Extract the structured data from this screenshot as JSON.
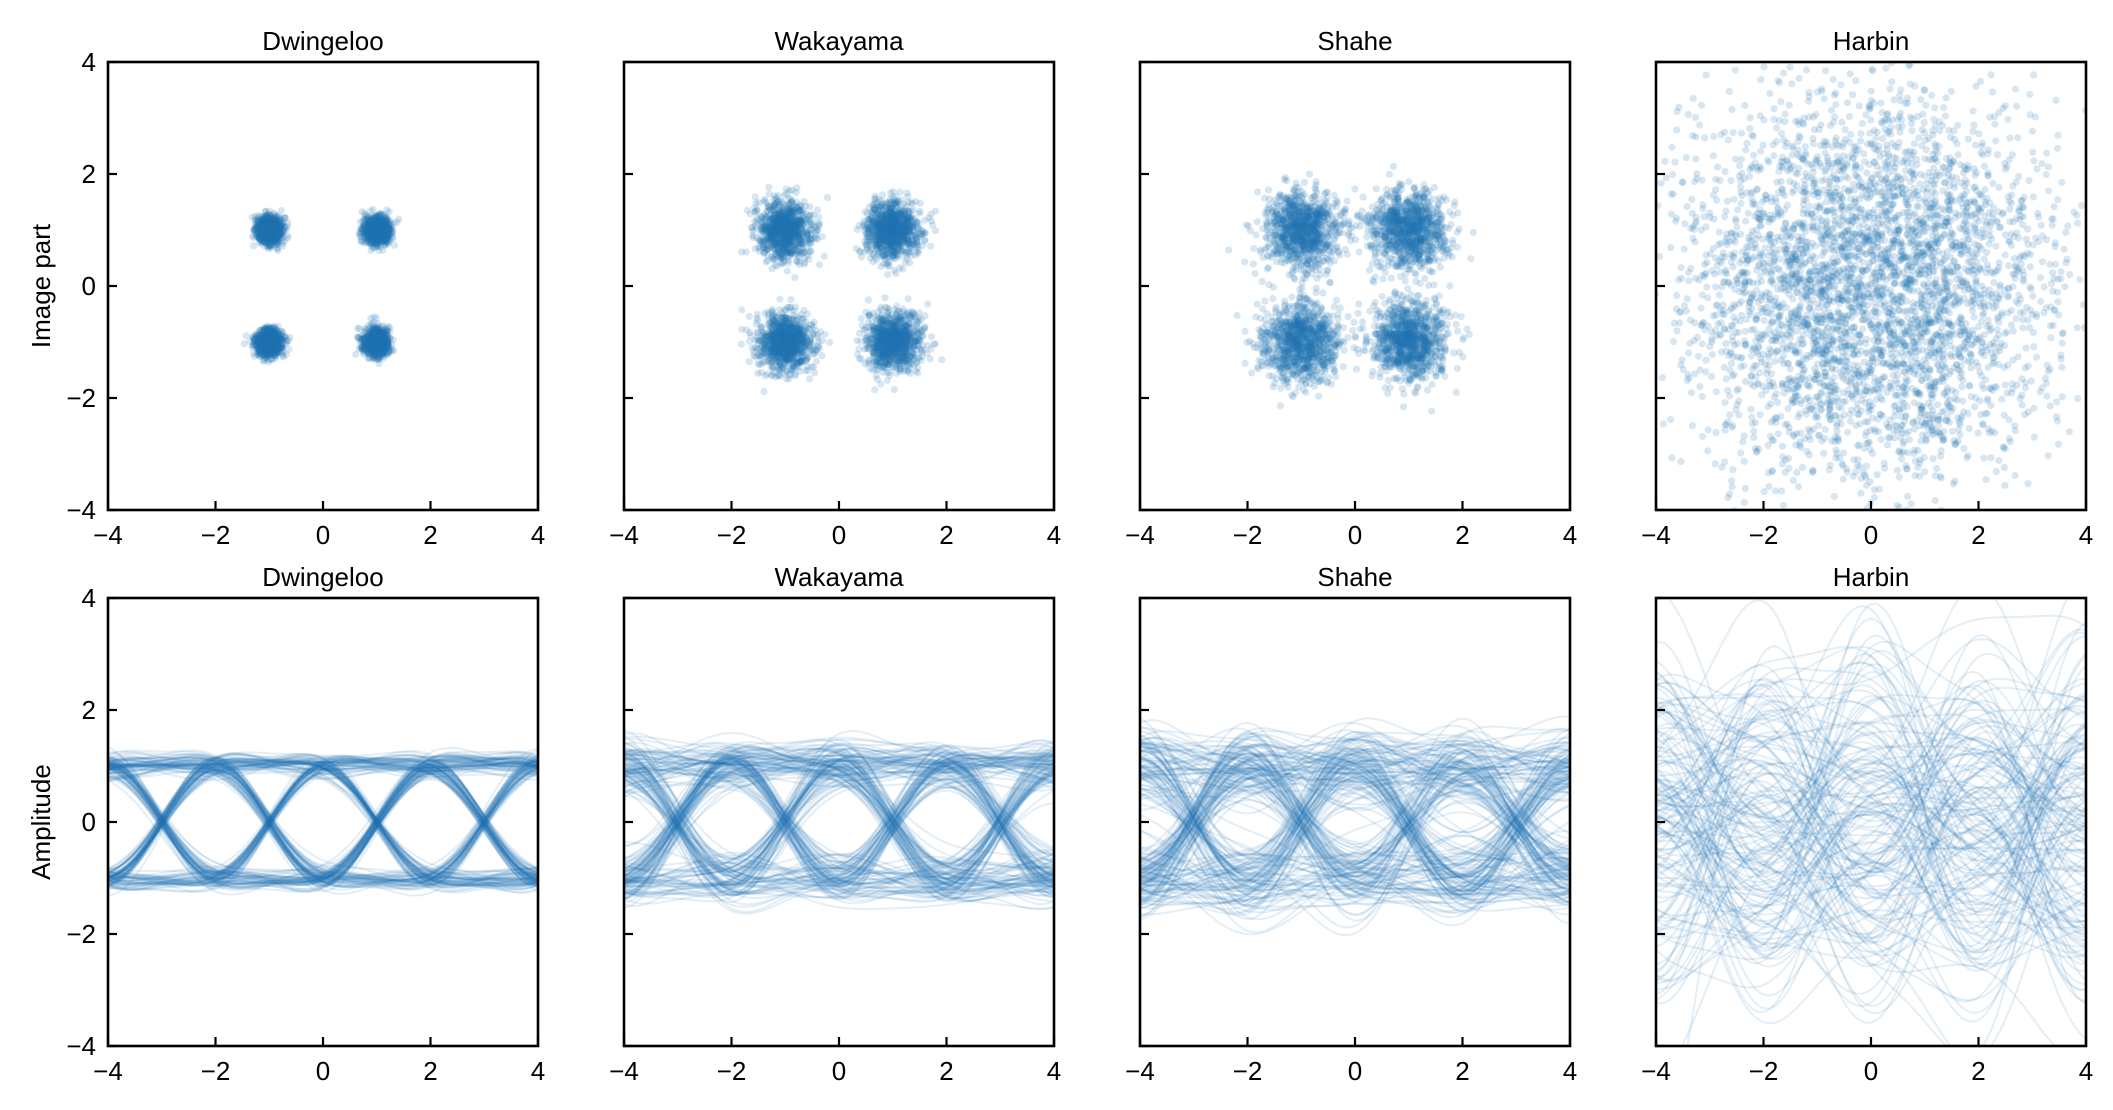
{
  "figure": {
    "rows": [
      {
        "kind": "constellation",
        "ylabel": "Image part"
      },
      {
        "kind": "eye",
        "ylabel": "Amplitude"
      }
    ],
    "panel_titles": [
      "Dwingeloo",
      "Wakayama",
      "Shahe",
      "Harbin"
    ],
    "color": "#1f77b4"
  },
  "chart_data": [
    {
      "type": "scatter",
      "row": 0,
      "col": 0,
      "title": "Dwingeloo",
      "ylabel": "Image part",
      "xlim": [
        -4,
        4
      ],
      "ylim": [
        -4,
        4
      ],
      "xticks": [
        -4,
        -2,
        0,
        2,
        4
      ],
      "yticks": [
        -4,
        -2,
        0,
        2,
        4
      ],
      "show_yticklabels": true,
      "constellation_points": [
        [
          -1,
          1
        ],
        [
          1,
          1
        ],
        [
          -1,
          -1
        ],
        [
          1,
          -1
        ]
      ],
      "noise_sigma": 0.12,
      "n_points": 4000,
      "alpha": 0.18
    },
    {
      "type": "scatter",
      "row": 0,
      "col": 1,
      "title": "Wakayama",
      "ylabel": "",
      "xlim": [
        -4,
        4
      ],
      "ylim": [
        -4,
        4
      ],
      "xticks": [
        -4,
        -2,
        0,
        2,
        4
      ],
      "yticks": [
        -4,
        -2,
        0,
        2,
        4
      ],
      "show_yticklabels": false,
      "constellation_points": [
        [
          -1,
          1
        ],
        [
          1,
          1
        ],
        [
          -1,
          -1
        ],
        [
          1,
          -1
        ]
      ],
      "noise_sigma": 0.25,
      "n_points": 4000,
      "alpha": 0.18
    },
    {
      "type": "scatter",
      "row": 0,
      "col": 2,
      "title": "Shahe",
      "ylabel": "",
      "xlim": [
        -4,
        4
      ],
      "ylim": [
        -4,
        4
      ],
      "xticks": [
        -4,
        -2,
        0,
        2,
        4
      ],
      "yticks": [
        -4,
        -2,
        0,
        2,
        4
      ],
      "show_yticklabels": false,
      "constellation_points": [
        [
          -1,
          1
        ],
        [
          1,
          1
        ],
        [
          -1,
          -1
        ],
        [
          1,
          -1
        ]
      ],
      "noise_sigma": 0.35,
      "n_points": 4000,
      "alpha": 0.18
    },
    {
      "type": "scatter",
      "row": 0,
      "col": 3,
      "title": "Harbin",
      "ylabel": "",
      "xlim": [
        -4,
        4
      ],
      "ylim": [
        -4,
        4
      ],
      "xticks": [
        -4,
        -2,
        0,
        2,
        4
      ],
      "yticks": [
        -4,
        -2,
        0,
        2,
        4
      ],
      "show_yticklabels": false,
      "constellation_points": [
        [
          -1,
          1
        ],
        [
          1,
          1
        ],
        [
          -1,
          -1
        ],
        [
          1,
          -1
        ]
      ],
      "noise_sigma": 1.3,
      "n_points": 4000,
      "alpha": 0.18
    },
    {
      "type": "line",
      "row": 1,
      "col": 0,
      "title": "Dwingeloo",
      "ylabel": "Amplitude",
      "xlim": [
        -4,
        4
      ],
      "ylim": [
        -4,
        4
      ],
      "xticks": [
        -4,
        -2,
        0,
        2,
        4
      ],
      "yticks": [
        -4,
        -2,
        0,
        2,
        4
      ],
      "show_yticklabels": true,
      "symbol_centers": [
        -4,
        -2,
        0,
        2,
        4
      ],
      "levels": [
        -1,
        1
      ],
      "noise_sigma": 0.1,
      "n_traces": 220,
      "alpha": 0.12
    },
    {
      "type": "line",
      "row": 1,
      "col": 1,
      "title": "Wakayama",
      "ylabel": "",
      "xlim": [
        -4,
        4
      ],
      "ylim": [
        -4,
        4
      ],
      "xticks": [
        -4,
        -2,
        0,
        2,
        4
      ],
      "yticks": [
        -4,
        -2,
        0,
        2,
        4
      ],
      "show_yticklabels": false,
      "symbol_centers": [
        -4,
        -2,
        0,
        2,
        4
      ],
      "levels": [
        -1,
        1
      ],
      "noise_sigma": 0.22,
      "n_traces": 220,
      "alpha": 0.12
    },
    {
      "type": "line",
      "row": 1,
      "col": 2,
      "title": "Shahe",
      "ylabel": "",
      "xlim": [
        -4,
        4
      ],
      "ylim": [
        -4,
        4
      ],
      "xticks": [
        -4,
        -2,
        0,
        2,
        4
      ],
      "yticks": [
        -4,
        -2,
        0,
        2,
        4
      ],
      "show_yticklabels": false,
      "symbol_centers": [
        -4,
        -2,
        0,
        2,
        4
      ],
      "levels": [
        -1,
        1
      ],
      "noise_sigma": 0.33,
      "n_traces": 220,
      "alpha": 0.12
    },
    {
      "type": "line",
      "row": 1,
      "col": 3,
      "title": "Harbin",
      "ylabel": "",
      "xlim": [
        -4,
        4
      ],
      "ylim": [
        -4,
        4
      ],
      "xticks": [
        -4,
        -2,
        0,
        2,
        4
      ],
      "yticks": [
        -4,
        -2,
        0,
        2,
        4
      ],
      "show_yticklabels": false,
      "symbol_centers": [
        -4,
        -2,
        0,
        2,
        4
      ],
      "levels": [
        -1,
        1
      ],
      "noise_sigma": 1.25,
      "n_traces": 160,
      "alpha": 0.12
    }
  ]
}
